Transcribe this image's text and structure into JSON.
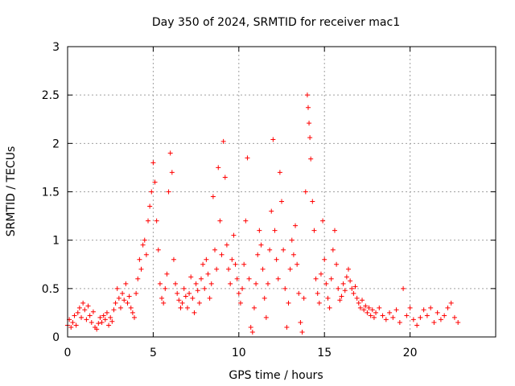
{
  "chart_data": {
    "type": "scatter",
    "title": "Day 350 of 2024, SRMTID for receiver mac1",
    "xlabel": "GPS time / hours",
    "ylabel": "SRMTID / TECUs",
    "xlim": [
      0,
      25
    ],
    "ylim": [
      0,
      3
    ],
    "xticks": [
      0,
      5,
      10,
      15,
      20
    ],
    "yticks": [
      0,
      0.5,
      1,
      1.5,
      2,
      2.5,
      3
    ],
    "grid": true,
    "marker": "+",
    "series": [
      {
        "name": "mac1",
        "color": "#ff0000",
        "points": [
          [
            0.0,
            0.12
          ],
          [
            0.1,
            0.18
          ],
          [
            0.2,
            0.1
          ],
          [
            0.3,
            0.15
          ],
          [
            0.4,
            0.22
          ],
          [
            0.5,
            0.12
          ],
          [
            0.6,
            0.25
          ],
          [
            0.7,
            0.3
          ],
          [
            0.8,
            0.2
          ],
          [
            0.9,
            0.35
          ],
          [
            1.0,
            0.28
          ],
          [
            1.1,
            0.18
          ],
          [
            1.2,
            0.32
          ],
          [
            1.3,
            0.22
          ],
          [
            1.4,
            0.15
          ],
          [
            1.5,
            0.26
          ],
          [
            1.6,
            0.1
          ],
          [
            1.7,
            0.08
          ],
          [
            1.8,
            0.14
          ],
          [
            1.9,
            0.2
          ],
          [
            2.0,
            0.15
          ],
          [
            2.1,
            0.22
          ],
          [
            2.2,
            0.18
          ],
          [
            2.3,
            0.25
          ],
          [
            2.4,
            0.12
          ],
          [
            2.5,
            0.2
          ],
          [
            2.6,
            0.16
          ],
          [
            2.7,
            0.28
          ],
          [
            2.8,
            0.35
          ],
          [
            2.9,
            0.5
          ],
          [
            3.0,
            0.4
          ],
          [
            3.1,
            0.3
          ],
          [
            3.2,
            0.45
          ],
          [
            3.3,
            0.38
          ],
          [
            3.4,
            0.55
          ],
          [
            3.5,
            0.35
          ],
          [
            3.6,
            0.42
          ],
          [
            3.7,
            0.3
          ],
          [
            3.8,
            0.25
          ],
          [
            3.9,
            0.2
          ],
          [
            4.0,
            0.45
          ],
          [
            4.1,
            0.6
          ],
          [
            4.2,
            0.8
          ],
          [
            4.3,
            0.7
          ],
          [
            4.4,
            0.95
          ],
          [
            4.5,
            1.0
          ],
          [
            4.6,
            0.85
          ],
          [
            4.7,
            1.2
          ],
          [
            4.8,
            1.35
          ],
          [
            4.9,
            1.5
          ],
          [
            5.0,
            1.8
          ],
          [
            5.1,
            1.6
          ],
          [
            5.2,
            1.2
          ],
          [
            5.3,
            0.9
          ],
          [
            5.4,
            0.55
          ],
          [
            5.5,
            0.4
          ],
          [
            5.6,
            0.35
          ],
          [
            5.7,
            0.5
          ],
          [
            5.8,
            0.65
          ],
          [
            5.9,
            1.5
          ],
          [
            6.0,
            1.9
          ],
          [
            6.1,
            1.7
          ],
          [
            6.2,
            0.8
          ],
          [
            6.3,
            0.55
          ],
          [
            6.4,
            0.45
          ],
          [
            6.5,
            0.38
          ],
          [
            6.6,
            0.3
          ],
          [
            6.7,
            0.35
          ],
          [
            6.8,
            0.5
          ],
          [
            6.9,
            0.42
          ],
          [
            7.0,
            0.3
          ],
          [
            7.1,
            0.45
          ],
          [
            7.2,
            0.62
          ],
          [
            7.3,
            0.4
          ],
          [
            7.4,
            0.25
          ],
          [
            7.5,
            0.55
          ],
          [
            7.6,
            0.48
          ],
          [
            7.7,
            0.35
          ],
          [
            7.8,
            0.6
          ],
          [
            7.9,
            0.75
          ],
          [
            8.0,
            0.5
          ],
          [
            8.1,
            0.8
          ],
          [
            8.2,
            0.65
          ],
          [
            8.3,
            0.4
          ],
          [
            8.4,
            0.55
          ],
          [
            8.5,
            1.45
          ],
          [
            8.6,
            0.9
          ],
          [
            8.7,
            0.7
          ],
          [
            8.8,
            1.75
          ],
          [
            8.9,
            1.2
          ],
          [
            9.0,
            0.85
          ],
          [
            9.1,
            2.02
          ],
          [
            9.2,
            1.65
          ],
          [
            9.3,
            0.95
          ],
          [
            9.4,
            0.7
          ],
          [
            9.5,
            0.55
          ],
          [
            9.6,
            0.8
          ],
          [
            9.7,
            1.05
          ],
          [
            9.8,
            0.75
          ],
          [
            9.9,
            0.6
          ],
          [
            10.0,
            0.45
          ],
          [
            10.1,
            0.35
          ],
          [
            10.2,
            0.5
          ],
          [
            10.3,
            0.75
          ],
          [
            10.4,
            1.2
          ],
          [
            10.5,
            1.85
          ],
          [
            10.6,
            0.6
          ],
          [
            10.7,
            0.1
          ],
          [
            10.8,
            0.05
          ],
          [
            10.9,
            0.3
          ],
          [
            11.0,
            0.55
          ],
          [
            11.1,
            0.85
          ],
          [
            11.2,
            1.1
          ],
          [
            11.3,
            0.95
          ],
          [
            11.4,
            0.7
          ],
          [
            11.5,
            0.4
          ],
          [
            11.6,
            0.2
          ],
          [
            11.7,
            0.55
          ],
          [
            11.8,
            0.9
          ],
          [
            11.9,
            1.3
          ],
          [
            12.0,
            2.04
          ],
          [
            12.1,
            1.1
          ],
          [
            12.2,
            0.8
          ],
          [
            12.3,
            0.6
          ],
          [
            12.4,
            1.7
          ],
          [
            12.5,
            1.4
          ],
          [
            12.6,
            0.9
          ],
          [
            12.7,
            0.5
          ],
          [
            12.8,
            0.1
          ],
          [
            12.9,
            0.35
          ],
          [
            13.0,
            0.7
          ],
          [
            13.1,
            1.0
          ],
          [
            13.2,
            0.85
          ],
          [
            13.3,
            1.15
          ],
          [
            13.4,
            0.75
          ],
          [
            13.5,
            0.45
          ],
          [
            13.6,
            0.15
          ],
          [
            13.7,
            0.05
          ],
          [
            13.8,
            0.4
          ],
          [
            13.9,
            1.5
          ],
          [
            14.0,
            2.5
          ],
          [
            14.05,
            2.37
          ],
          [
            14.1,
            2.21
          ],
          [
            14.15,
            2.06
          ],
          [
            14.2,
            1.84
          ],
          [
            14.3,
            1.4
          ],
          [
            14.4,
            1.1
          ],
          [
            14.5,
            0.6
          ],
          [
            14.6,
            0.45
          ],
          [
            14.7,
            0.35
          ],
          [
            14.8,
            0.65
          ],
          [
            14.9,
            1.2
          ],
          [
            15.0,
            0.8
          ],
          [
            15.1,
            0.55
          ],
          [
            15.2,
            0.4
          ],
          [
            15.3,
            0.3
          ],
          [
            15.4,
            0.6
          ],
          [
            15.5,
            0.9
          ],
          [
            15.6,
            1.1
          ],
          [
            15.7,
            0.75
          ],
          [
            15.8,
            0.5
          ],
          [
            15.9,
            0.38
          ],
          [
            16.0,
            0.42
          ],
          [
            16.1,
            0.55
          ],
          [
            16.2,
            0.48
          ],
          [
            16.3,
            0.62
          ],
          [
            16.4,
            0.7
          ],
          [
            16.5,
            0.58
          ],
          [
            16.6,
            0.5
          ],
          [
            16.7,
            0.45
          ],
          [
            16.8,
            0.52
          ],
          [
            16.9,
            0.4
          ],
          [
            17.0,
            0.35
          ],
          [
            17.1,
            0.3
          ],
          [
            17.2,
            0.38
          ],
          [
            17.3,
            0.28
          ],
          [
            17.4,
            0.32
          ],
          [
            17.5,
            0.25
          ],
          [
            17.6,
            0.3
          ],
          [
            17.7,
            0.22
          ],
          [
            17.8,
            0.28
          ],
          [
            17.9,
            0.2
          ],
          [
            18.0,
            0.25
          ],
          [
            18.2,
            0.3
          ],
          [
            18.4,
            0.22
          ],
          [
            18.6,
            0.18
          ],
          [
            18.8,
            0.25
          ],
          [
            19.0,
            0.2
          ],
          [
            19.2,
            0.28
          ],
          [
            19.4,
            0.15
          ],
          [
            19.6,
            0.5
          ],
          [
            19.8,
            0.22
          ],
          [
            20.0,
            0.3
          ],
          [
            20.2,
            0.18
          ],
          [
            20.4,
            0.12
          ],
          [
            20.6,
            0.2
          ],
          [
            20.8,
            0.28
          ],
          [
            21.0,
            0.22
          ],
          [
            21.2,
            0.3
          ],
          [
            21.4,
            0.15
          ],
          [
            21.6,
            0.25
          ],
          [
            21.8,
            0.18
          ],
          [
            22.0,
            0.22
          ],
          [
            22.2,
            0.3
          ],
          [
            22.4,
            0.35
          ],
          [
            22.6,
            0.2
          ],
          [
            22.8,
            0.15
          ]
        ]
      }
    ]
  }
}
